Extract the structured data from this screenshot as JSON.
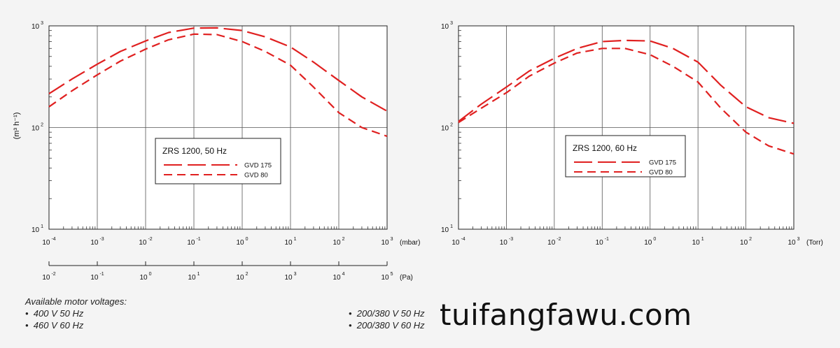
{
  "chart_data": [
    {
      "type": "line",
      "log_x": true,
      "log_y": true,
      "xlim": [
        0.0001,
        1000
      ],
      "ylim": [
        10,
        1000
      ],
      "xlabel": "(mbar)",
      "ylabel": "(m³ h⁻¹)",
      "x_ticks": [
        {
          "base": "10",
          "exp": "-4"
        },
        {
          "base": "10",
          "exp": "-3"
        },
        {
          "base": "10",
          "exp": "-2"
        },
        {
          "base": "10",
          "exp": "-1"
        },
        {
          "base": "10",
          "exp": "0"
        },
        {
          "base": "10",
          "exp": "1"
        },
        {
          "base": "10",
          "exp": "2"
        },
        {
          "base": "10",
          "exp": "3"
        }
      ],
      "secondary_x": {
        "xlabel": "(Pa)",
        "ticks": [
          {
            "base": "10",
            "exp": "-2"
          },
          {
            "base": "10",
            "exp": "-1"
          },
          {
            "base": "10",
            "exp": "0"
          },
          {
            "base": "10",
            "exp": "1"
          },
          {
            "base": "10",
            "exp": "2"
          },
          {
            "base": "10",
            "exp": "3"
          },
          {
            "base": "10",
            "exp": "4"
          },
          {
            "base": "10",
            "exp": "5"
          }
        ]
      },
      "y_ticks": [
        {
          "base": "10",
          "exp": "1"
        },
        {
          "base": "10",
          "exp": "2"
        },
        {
          "base": "10",
          "exp": "3"
        }
      ],
      "grid": true,
      "legend_title": "ZRS 1200, 50 Hz",
      "legend_position": "center-left",
      "series": [
        {
          "name": "GVD 175",
          "color": "#e02020",
          "dash": "long",
          "x": [
            0.0001,
            0.0003,
            0.001,
            0.003,
            0.01,
            0.03,
            0.1,
            0.3,
            1,
            3,
            10,
            30,
            100,
            300,
            1000
          ],
          "y": [
            215,
            300,
            420,
            560,
            710,
            860,
            950,
            955,
            900,
            780,
            620,
            440,
            290,
            200,
            145
          ]
        },
        {
          "name": "GVD 80",
          "color": "#e02020",
          "dash": "short",
          "x": [
            0.0001,
            0.0003,
            0.001,
            0.003,
            0.01,
            0.03,
            0.1,
            0.3,
            1,
            3,
            10,
            30,
            100,
            300,
            1000
          ],
          "y": [
            160,
            230,
            330,
            450,
            590,
            730,
            830,
            820,
            700,
            560,
            410,
            250,
            140,
            100,
            82
          ]
        }
      ]
    },
    {
      "type": "line",
      "log_x": true,
      "log_y": true,
      "xlim": [
        0.0001,
        1000
      ],
      "ylim": [
        10,
        1000
      ],
      "xlabel": "(Torr)",
      "ylabel": "",
      "x_ticks": [
        {
          "base": "10",
          "exp": "-4"
        },
        {
          "base": "10",
          "exp": "-3"
        },
        {
          "base": "10",
          "exp": "-2"
        },
        {
          "base": "10",
          "exp": "-1"
        },
        {
          "base": "10",
          "exp": "0"
        },
        {
          "base": "10",
          "exp": "1"
        },
        {
          "base": "10",
          "exp": "2"
        },
        {
          "base": "10",
          "exp": "3"
        }
      ],
      "y_ticks": [
        {
          "base": "10",
          "exp": "1"
        },
        {
          "base": "10",
          "exp": "2"
        },
        {
          "base": "10",
          "exp": "3"
        }
      ],
      "grid": true,
      "legend_title": "ZRS 1200, 60 Hz",
      "legend_position": "center-right",
      "series": [
        {
          "name": "GVD 175",
          "color": "#e02020",
          "dash": "long",
          "x": [
            0.0001,
            0.0003,
            0.001,
            0.003,
            0.01,
            0.03,
            0.1,
            0.3,
            1,
            3,
            10,
            30,
            100,
            300,
            1000
          ],
          "y": [
            115,
            170,
            250,
            360,
            480,
            600,
            700,
            720,
            710,
            600,
            440,
            260,
            160,
            125,
            110
          ]
        },
        {
          "name": "GVD 80",
          "color": "#e02020",
          "dash": "short",
          "x": [
            0.0001,
            0.0003,
            0.001,
            0.003,
            0.01,
            0.03,
            0.1,
            0.3,
            1,
            3,
            10,
            30,
            100,
            300,
            1000
          ],
          "y": [
            112,
            155,
            220,
            320,
            430,
            540,
            600,
            600,
            520,
            400,
            280,
            155,
            90,
            66,
            55
          ]
        }
      ]
    }
  ],
  "notes": {
    "heading": "Available motor voltages:",
    "left_items": [
      "400 V 50 Hz",
      "460 V 60 Hz"
    ],
    "right_items": [
      "200/380 V 50 Hz",
      "200/380 V 60 Hz"
    ]
  },
  "watermark": "tuifangfawu.com"
}
